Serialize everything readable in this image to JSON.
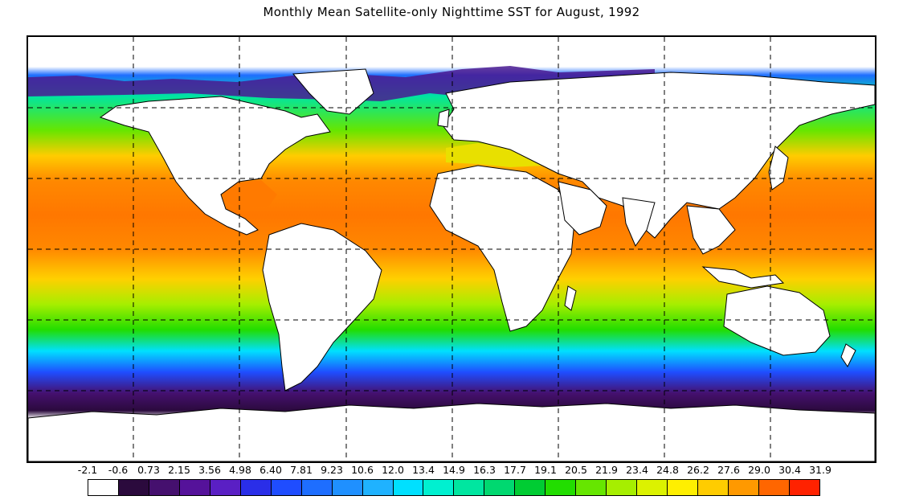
{
  "title": "Monthly Mean Satellite-only Nighttime SST for August, 1992",
  "map": {
    "projection": "equirectangular",
    "grid": "dashed",
    "ocean_field": "sea-surface-temperature",
    "land_color": "#ffffff"
  },
  "legend": {
    "tick_labels": [
      "-2.1",
      "-0.6",
      "0.73",
      "2.15",
      "3.56",
      "4.98",
      "6.40",
      "7.81",
      "9.23",
      "10.6",
      "12.0",
      "13.4",
      "14.9",
      "16.3",
      "17.7",
      "19.1",
      "20.5",
      "21.9",
      "23.4",
      "24.8",
      "26.2",
      "27.6",
      "29.0",
      "30.4",
      "31.9"
    ],
    "colors": [
      "#ffffff",
      "#2b0a3d",
      "#45106e",
      "#55129a",
      "#5a1fc4",
      "#2a2ee8",
      "#1f4dff",
      "#1e6eff",
      "#1f90ff",
      "#1fb2ff",
      "#00e0ff",
      "#00f0d0",
      "#00e6a0",
      "#00d870",
      "#00cc33",
      "#22dd00",
      "#66e600",
      "#a6ee00",
      "#dcf200",
      "#ffef00",
      "#ffcc00",
      "#ff9900",
      "#ff6600",
      "#ff2200"
    ]
  }
}
